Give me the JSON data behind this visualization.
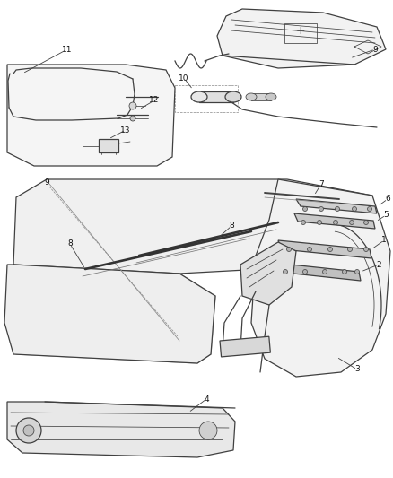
{
  "bg_color": "#ffffff",
  "line_color": "#404040",
  "fig_width": 4.38,
  "fig_height": 5.33,
  "dpi": 100
}
